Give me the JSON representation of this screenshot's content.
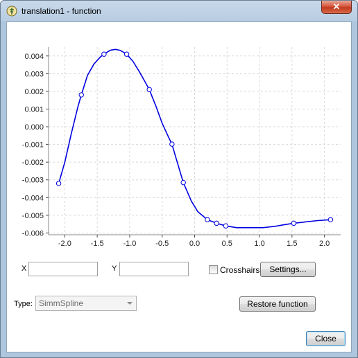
{
  "window": {
    "title": "translation1 - function",
    "close_glyph": "✕",
    "icon": "app-logo-icon"
  },
  "chart_data": {
    "type": "line",
    "title": "",
    "xlabel": "",
    "ylabel": "",
    "xlim": [
      -2.25,
      2.25
    ],
    "ylim": [
      -0.0061,
      0.0045
    ],
    "grid": true,
    "x_ticks": [
      "-2.0",
      "-1.5",
      "-1.0",
      "-0.5",
      "0.0",
      "0.5",
      "1.0",
      "1.5",
      "2.0"
    ],
    "x_tick_values": [
      -2.0,
      -1.5,
      -1.0,
      -0.5,
      0.0,
      0.5,
      1.0,
      1.5,
      2.0
    ],
    "y_ticks": [
      "0.004",
      "0.003",
      "0.002",
      "0.001",
      "0.000",
      "-0.001",
      "-0.002",
      "-0.003",
      "-0.004",
      "-0.005",
      "-0.006"
    ],
    "y_tick_values": [
      0.004,
      0.003,
      0.002,
      0.001,
      0.0,
      -0.001,
      -0.002,
      -0.003,
      -0.004,
      -0.005,
      -0.006
    ],
    "series": [
      {
        "color": "#0000e0",
        "control_points": [
          {
            "x": -2.094,
            "y": -0.0032
          },
          {
            "x": -1.745,
            "y": 0.0018
          },
          {
            "x": -1.396,
            "y": 0.0041
          },
          {
            "x": -1.047,
            "y": 0.0041
          },
          {
            "x": -0.698,
            "y": 0.0021
          },
          {
            "x": -0.349,
            "y": -0.00098
          },
          {
            "x": -0.174,
            "y": -0.00315
          },
          {
            "x": 0.197,
            "y": -0.00525
          },
          {
            "x": 0.339,
            "y": -0.00545
          },
          {
            "x": 0.48,
            "y": -0.0056
          },
          {
            "x": 1.527,
            "y": -0.00545
          },
          {
            "x": 2.094,
            "y": -0.00525
          }
        ],
        "curve": [
          [
            -2.094,
            -0.0032
          ],
          [
            -2.0,
            -0.002
          ],
          [
            -1.9,
            -0.0004
          ],
          [
            -1.8,
            0.0011
          ],
          [
            -1.745,
            0.0018
          ],
          [
            -1.65,
            0.0029
          ],
          [
            -1.55,
            0.00355
          ],
          [
            -1.45,
            0.00395
          ],
          [
            -1.396,
            0.0041
          ],
          [
            -1.3,
            0.00432
          ],
          [
            -1.22,
            0.00437
          ],
          [
            -1.15,
            0.00432
          ],
          [
            -1.1,
            0.00422
          ],
          [
            -1.047,
            0.0041
          ],
          [
            -0.95,
            0.0037
          ],
          [
            -0.85,
            0.0031
          ],
          [
            -0.75,
            0.00245
          ],
          [
            -0.698,
            0.0021
          ],
          [
            -0.6,
            0.0012
          ],
          [
            -0.5,
            0.0002
          ],
          [
            -0.4,
            -0.0006
          ],
          [
            -0.349,
            -0.00098
          ],
          [
            -0.28,
            -0.00185
          ],
          [
            -0.174,
            -0.00315
          ],
          [
            -0.05,
            -0.0042
          ],
          [
            0.05,
            -0.0048
          ],
          [
            0.197,
            -0.00525
          ],
          [
            0.339,
            -0.00545
          ],
          [
            0.48,
            -0.0056
          ],
          [
            0.65,
            -0.0057
          ],
          [
            0.85,
            -0.0057
          ],
          [
            1.05,
            -0.0057
          ],
          [
            1.25,
            -0.00562
          ],
          [
            1.4,
            -0.00552
          ],
          [
            1.527,
            -0.00545
          ],
          [
            1.7,
            -0.00538
          ],
          [
            1.9,
            -0.0053
          ],
          [
            2.094,
            -0.00525
          ]
        ]
      }
    ]
  },
  "controls": {
    "x_label": "X",
    "x_value": "",
    "y_label": "Y",
    "y_value": "",
    "crosshairs_label": "Crosshairs",
    "crosshairs_checked": false,
    "settings_button": "Settings...",
    "type_label": "Type:",
    "type_selected": "SimmSpline",
    "restore_button": "Restore function",
    "close_button": "Close"
  }
}
